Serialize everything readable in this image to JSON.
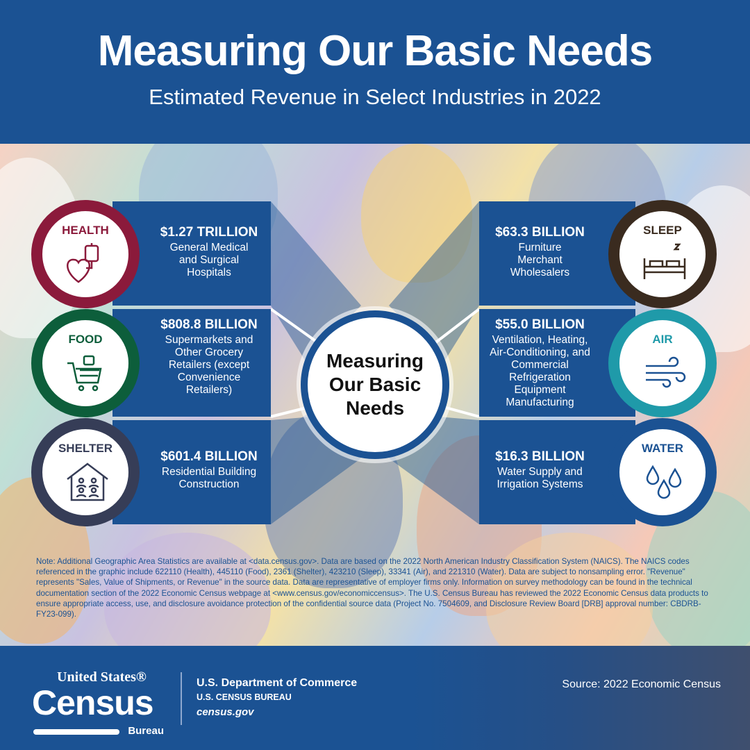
{
  "header": {
    "title": "Measuring Our Basic Needs",
    "subtitle": "Estimated Revenue in Select Industries in 2022"
  },
  "center": {
    "label": "Measuring Our Basic Needs"
  },
  "categories": [
    {
      "label": "HEALTH",
      "value": "$1.27 TRILLION",
      "description": "General Medical and Surgical Hospitals",
      "color": "#8b1a3b",
      "icon": "heart-iv-bag-icon"
    },
    {
      "label": "FOOD",
      "value": "$808.8 BILLION",
      "description": "Supermarkets and Other Grocery Retailers (except Convenience Retailers)",
      "color": "#0d5e3b",
      "icon": "shopping-cart-icon"
    },
    {
      "label": "SHELTER",
      "value": "$601.4 BILLION",
      "description": "Residential Building Construction",
      "color": "#363d57",
      "icon": "house-family-icon"
    },
    {
      "label": "SLEEP",
      "value": "$63.3 BILLION",
      "description": "Furniture Merchant Wholesalers",
      "color": "#3a2b1f",
      "icon": "bed-icon"
    },
    {
      "label": "AIR",
      "value": "$55.0 BILLION",
      "description": "Ventilation, Heating, Air-Conditioning, and Commercial Refrigeration Equipment Manufacturing",
      "color": "#1f9aa9",
      "icon": "wind-icon"
    },
    {
      "label": "WATER",
      "value": "$16.3 BILLION",
      "description": "Water Supply and Irrigation Systems",
      "color": "#1b5293",
      "icon": "water-drops-icon"
    }
  ],
  "note": "Note: Additional Geographic Area Statistics are available at <data.census.gov>. Data are based on the 2022 North American Industry Classification System (NAICS). The NAICS codes referenced in the graphic include 622110 (Health), 445110 (Food), 2361 (Shelter), 423210 (Sleep), 33341 (Air), and 221310 (Water). Data are subject to nonsampling error. \"Revenue\" represents \"Sales, Value of Shipments, or Revenue\" in the source data. Data are representative of employer firms only. Information on survey methodology can be found in the technical documentation section of the 2022 Economic Census webpage at <www.census.gov/economiccensus>. The U.S. Census Bureau has reviewed the 2022 Economic Census data products to ensure appropriate access, use, and disclosure avoidance protection of the confidential source data (Project No. 7504609, and Disclosure Review Board [DRB] approval number: CBDRB-FY23-099).",
  "footer": {
    "logo_top": "United States®",
    "logo_main": "Census",
    "logo_bottom": "Bureau",
    "department": "U.S. Department of Commerce",
    "bureau": "U.S. CENSUS BUREAU",
    "website": "census.gov",
    "source": "Source: 2022 Economic Census"
  },
  "colors": {
    "brand_blue": "#1b5293"
  }
}
